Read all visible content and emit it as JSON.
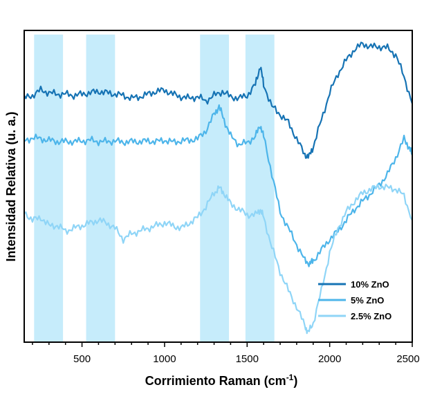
{
  "chart_data": {
    "type": "line",
    "title": "",
    "xlabel": "Corrimiento Raman (cm",
    "xlabel_sup": "-1",
    "xlabel_suffix": ")",
    "ylabel": "Intensidad Relativa (u. a.)",
    "xlim": [
      150,
      2500
    ],
    "x_ticks": [
      500,
      1000,
      1500,
      2000,
      2500
    ],
    "x_tick_labels": [
      "500",
      "1000",
      "1500",
      "2000",
      "2500"
    ],
    "y_ticks_shown": false,
    "legend_position": "bottom-right",
    "highlight_bands": [
      {
        "x_start": 210,
        "x_end": 385
      },
      {
        "x_start": 525,
        "x_end": 700
      },
      {
        "x_start": 1215,
        "x_end": 1390
      },
      {
        "x_start": 1490,
        "x_end": 1665
      }
    ],
    "band_color": "#c6ecfb",
    "series": [
      {
        "name": "10% ZnO",
        "color": "#1673b4",
        "points": [
          [
            150,
            0.9
          ],
          [
            200,
            0.91
          ],
          [
            250,
            0.93
          ],
          [
            300,
            0.92
          ],
          [
            350,
            0.915
          ],
          [
            400,
            0.915
          ],
          [
            450,
            0.91
          ],
          [
            500,
            0.915
          ],
          [
            550,
            0.92
          ],
          [
            600,
            0.925
          ],
          [
            650,
            0.92
          ],
          [
            700,
            0.915
          ],
          [
            750,
            0.91
          ],
          [
            800,
            0.9
          ],
          [
            850,
            0.905
          ],
          [
            900,
            0.915
          ],
          [
            950,
            0.925
          ],
          [
            1000,
            0.93
          ],
          [
            1050,
            0.915
          ],
          [
            1100,
            0.905
          ],
          [
            1150,
            0.9
          ],
          [
            1200,
            0.905
          ],
          [
            1250,
            0.89
          ],
          [
            1300,
            0.91
          ],
          [
            1350,
            0.925
          ],
          [
            1400,
            0.905
          ],
          [
            1450,
            0.9
          ],
          [
            1500,
            0.91
          ],
          [
            1550,
            0.95
          ],
          [
            1580,
            1.02
          ],
          [
            1600,
            0.95
          ],
          [
            1650,
            0.87
          ],
          [
            1700,
            0.84
          ],
          [
            1750,
            0.81
          ],
          [
            1800,
            0.75
          ],
          [
            1850,
            0.69
          ],
          [
            1875,
            0.685
          ],
          [
            1900,
            0.72
          ],
          [
            1950,
            0.82
          ],
          [
            2000,
            0.92
          ],
          [
            2050,
            0.99
          ],
          [
            2100,
            1.04
          ],
          [
            2150,
            1.08
          ],
          [
            2200,
            1.1
          ],
          [
            2250,
            1.09
          ],
          [
            2300,
            1.09
          ],
          [
            2350,
            1.085
          ],
          [
            2400,
            1.06
          ],
          [
            2450,
            0.98
          ],
          [
            2500,
            0.88
          ]
        ]
      },
      {
        "name": "5% ZnO",
        "color": "#4db5ea",
        "points": [
          [
            150,
            0.74
          ],
          [
            200,
            0.755
          ],
          [
            250,
            0.75
          ],
          [
            300,
            0.745
          ],
          [
            350,
            0.74
          ],
          [
            400,
            0.74
          ],
          [
            450,
            0.74
          ],
          [
            500,
            0.742
          ],
          [
            550,
            0.745
          ],
          [
            600,
            0.74
          ],
          [
            650,
            0.74
          ],
          [
            700,
            0.742
          ],
          [
            750,
            0.738
          ],
          [
            800,
            0.74
          ],
          [
            850,
            0.74
          ],
          [
            900,
            0.742
          ],
          [
            950,
            0.74
          ],
          [
            1000,
            0.745
          ],
          [
            1050,
            0.738
          ],
          [
            1100,
            0.742
          ],
          [
            1150,
            0.745
          ],
          [
            1200,
            0.75
          ],
          [
            1250,
            0.78
          ],
          [
            1300,
            0.84
          ],
          [
            1330,
            0.87
          ],
          [
            1360,
            0.82
          ],
          [
            1400,
            0.76
          ],
          [
            1450,
            0.73
          ],
          [
            1500,
            0.735
          ],
          [
            1550,
            0.76
          ],
          [
            1580,
            0.8
          ],
          [
            1600,
            0.76
          ],
          [
            1650,
            0.62
          ],
          [
            1700,
            0.48
          ],
          [
            1750,
            0.42
          ],
          [
            1800,
            0.36
          ],
          [
            1850,
            0.3
          ],
          [
            1880,
            0.29
          ],
          [
            1900,
            0.3
          ],
          [
            1950,
            0.34
          ],
          [
            2000,
            0.38
          ],
          [
            2050,
            0.41
          ],
          [
            2100,
            0.45
          ],
          [
            2150,
            0.49
          ],
          [
            2200,
            0.52
          ],
          [
            2250,
            0.55
          ],
          [
            2300,
            0.58
          ],
          [
            2350,
            0.62
          ],
          [
            2400,
            0.68
          ],
          [
            2450,
            0.75
          ],
          [
            2480,
            0.72
          ],
          [
            2500,
            0.69
          ]
        ]
      },
      {
        "name": "2.5% ZnO",
        "color": "#8fd5f7",
        "points": [
          [
            150,
            0.48
          ],
          [
            200,
            0.45
          ],
          [
            250,
            0.46
          ],
          [
            300,
            0.43
          ],
          [
            350,
            0.43
          ],
          [
            400,
            0.41
          ],
          [
            450,
            0.42
          ],
          [
            500,
            0.43
          ],
          [
            550,
            0.44
          ],
          [
            600,
            0.45
          ],
          [
            650,
            0.44
          ],
          [
            700,
            0.42
          ],
          [
            750,
            0.38
          ],
          [
            800,
            0.4
          ],
          [
            850,
            0.41
          ],
          [
            900,
            0.42
          ],
          [
            950,
            0.43
          ],
          [
            1000,
            0.44
          ],
          [
            1050,
            0.43
          ],
          [
            1100,
            0.42
          ],
          [
            1150,
            0.44
          ],
          [
            1200,
            0.46
          ],
          [
            1250,
            0.5
          ],
          [
            1300,
            0.55
          ],
          [
            1330,
            0.57
          ],
          [
            1360,
            0.55
          ],
          [
            1400,
            0.51
          ],
          [
            1450,
            0.49
          ],
          [
            1500,
            0.47
          ],
          [
            1550,
            0.47
          ],
          [
            1580,
            0.49
          ],
          [
            1600,
            0.46
          ],
          [
            1650,
            0.35
          ],
          [
            1700,
            0.26
          ],
          [
            1750,
            0.19
          ],
          [
            1800,
            0.13
          ],
          [
            1850,
            0.06
          ],
          [
            1870,
            0.035
          ],
          [
            1900,
            0.07
          ],
          [
            1950,
            0.19
          ],
          [
            2000,
            0.33
          ],
          [
            2050,
            0.42
          ],
          [
            2100,
            0.48
          ],
          [
            2150,
            0.52
          ],
          [
            2200,
            0.55
          ],
          [
            2250,
            0.565
          ],
          [
            2300,
            0.575
          ],
          [
            2350,
            0.57
          ],
          [
            2400,
            0.565
          ],
          [
            2450,
            0.54
          ],
          [
            2500,
            0.45
          ]
        ]
      }
    ]
  }
}
